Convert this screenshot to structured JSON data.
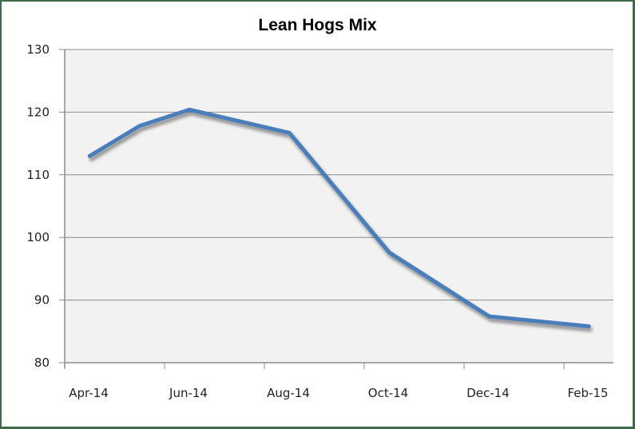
{
  "chart_data": {
    "type": "line",
    "title": "Lean Hogs Mix",
    "xlabel": "",
    "ylabel": "",
    "ylim": [
      80,
      130
    ],
    "yticks": [
      80,
      90,
      100,
      110,
      120,
      130
    ],
    "xtick_labels": [
      "Apr-14",
      "Jun-14",
      "Aug-14",
      "Oct-14",
      "Dec-14",
      "Feb-15"
    ],
    "x": [
      "Apr-14",
      "May-14",
      "Jun-14",
      "Aug-14",
      "Oct-14",
      "Dec-14",
      "Feb-15"
    ],
    "x_month_index": [
      0,
      1,
      2,
      4,
      6,
      8,
      10
    ],
    "series": [
      {
        "name": "Lean Hogs Mix",
        "color": "#4a7ebb",
        "values": [
          113.0,
          117.8,
          120.4,
          116.7,
          97.6,
          87.4,
          85.8
        ]
      }
    ],
    "grid": true,
    "legend": "none",
    "plot_background": "#f2f2f2",
    "gridline_color": "#8c8c8c"
  }
}
